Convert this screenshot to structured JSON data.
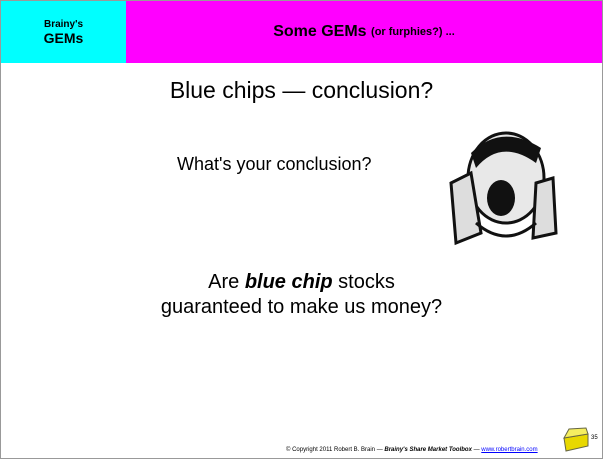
{
  "header": {
    "badge": [
      "Brainy's",
      "GEMs"
    ],
    "title": "Some GEMs",
    "title_small": "(or furphies?) ..."
  },
  "slide": {
    "title": "Blue chips — conclusion?",
    "question": "What's your conclusion?",
    "body": {
      "line1": [
        "Are ",
        "blue chip",
        " stocks"
      ],
      "line2": "guaranteed to make us money?"
    }
  },
  "footer": {
    "copyright": "© Copyright 2011 Robert B. Brain — ",
    "book": "Brainy's Share Market Toolbox",
    "sep": " — ",
    "link": "www.robertbrain.com",
    "page": "35"
  }
}
